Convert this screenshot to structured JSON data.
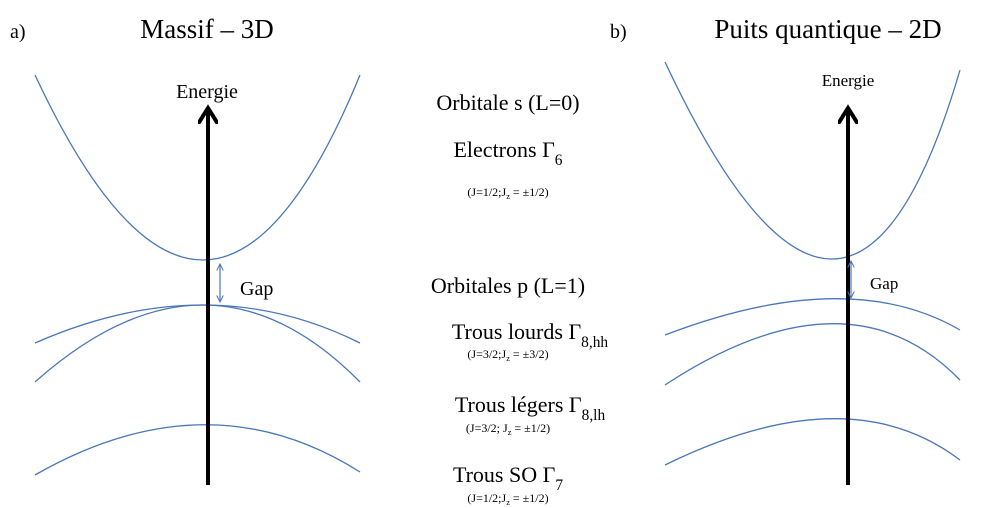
{
  "panels": [
    {
      "letter": "a)",
      "title": "Massif – 3D",
      "axis_label": "Energie",
      "gap_label": "Gap"
    },
    {
      "letter": "b)",
      "title": "Puits quantique – 2D",
      "axis_label": "Energie",
      "gap_label": "Gap"
    }
  ],
  "center": {
    "orbital_s": "Orbitale s (L=0)",
    "electrons": {
      "main": "Electrons Γ",
      "sub": "6"
    },
    "electrons_numbers": {
      "main": "(J=1/2;J",
      "sub": "z",
      "rest": " = ±1/2)"
    },
    "orbital_p": "Orbitales p (L=1)",
    "heavy_holes": {
      "main": "Trous lourds Γ",
      "sub": "8,hh"
    },
    "heavy_holes_numbers": {
      "main": "(J=3/2;J",
      "sub": "z",
      "rest": " = ±3/2)"
    },
    "light_holes": {
      "main": "Trous légers Γ",
      "sub": "8,lh"
    },
    "light_holes_numbers": {
      "main": "(J=3/2; J",
      "sub": "z",
      "rest": " = ±1/2)"
    },
    "split_off": {
      "main": "Trous SO Γ",
      "sub": "7"
    },
    "split_off_numbers": {
      "main": "(J=1/2;J",
      "sub": "z",
      "rest": " = ±1/2)"
    }
  }
}
